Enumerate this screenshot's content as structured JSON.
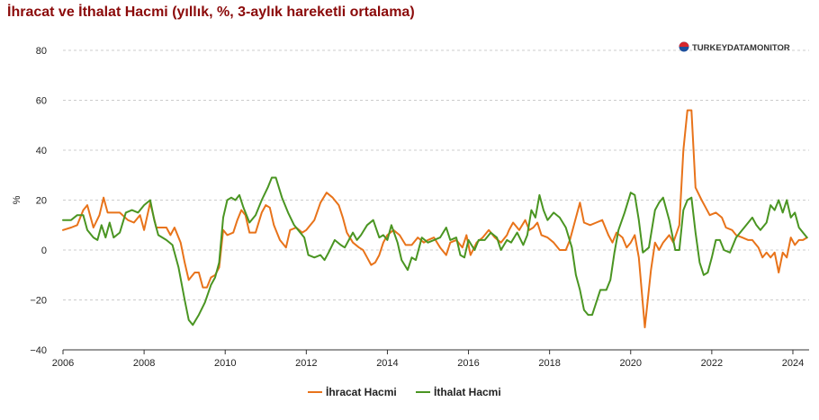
{
  "chart_data": {
    "type": "line",
    "title": "İhracat ve İthalat Hacmi (yıllık, %, 3-aylık hareketli ortalama)",
    "xlabel": "",
    "ylabel": "%",
    "xlim": [
      2006,
      2024.4
    ],
    "ylim": [
      -40,
      80
    ],
    "x_ticks": [
      "2006",
      "2008",
      "2010",
      "2012",
      "2014",
      "2016",
      "2018",
      "2020",
      "2022",
      "2024"
    ],
    "y_ticks": [
      "80",
      "60",
      "40",
      "20",
      "0",
      "−20",
      "−40"
    ],
    "grid": "horizontal-dashed",
    "legend_position": "bottom-center",
    "watermark": "TURKEYDATAMONITOR",
    "colors": {
      "title": "#8b0a0a",
      "grid": "#cccccc"
    },
    "series": [
      {
        "name": "İhracat Hacmi",
        "color": "#e8731a",
        "points": [
          [
            2006.0,
            8
          ],
          [
            2006.2,
            9
          ],
          [
            2006.35,
            10
          ],
          [
            2006.5,
            16
          ],
          [
            2006.6,
            18
          ],
          [
            2006.75,
            9
          ],
          [
            2006.9,
            14
          ],
          [
            2007.0,
            21
          ],
          [
            2007.1,
            15
          ],
          [
            2007.25,
            15
          ],
          [
            2007.4,
            15
          ],
          [
            2007.6,
            12
          ],
          [
            2007.75,
            11
          ],
          [
            2007.9,
            14
          ],
          [
            2008.0,
            8
          ],
          [
            2008.15,
            19
          ],
          [
            2008.3,
            9
          ],
          [
            2008.45,
            9
          ],
          [
            2008.55,
            9
          ],
          [
            2008.65,
            6
          ],
          [
            2008.75,
            9
          ],
          [
            2008.9,
            3
          ],
          [
            2009.0,
            -5
          ],
          [
            2009.1,
            -12
          ],
          [
            2009.25,
            -9
          ],
          [
            2009.35,
            -9
          ],
          [
            2009.45,
            -15
          ],
          [
            2009.55,
            -15
          ],
          [
            2009.65,
            -11
          ],
          [
            2009.75,
            -10
          ],
          [
            2009.85,
            -7
          ],
          [
            2009.95,
            8
          ],
          [
            2010.05,
            6
          ],
          [
            2010.2,
            7
          ],
          [
            2010.3,
            12
          ],
          [
            2010.4,
            16
          ],
          [
            2010.5,
            14
          ],
          [
            2010.6,
            7
          ],
          [
            2010.75,
            7
          ],
          [
            2010.9,
            15
          ],
          [
            2011.0,
            18
          ],
          [
            2011.1,
            17
          ],
          [
            2011.2,
            10
          ],
          [
            2011.35,
            4
          ],
          [
            2011.5,
            1
          ],
          [
            2011.6,
            8
          ],
          [
            2011.75,
            9
          ],
          [
            2011.9,
            7
          ],
          [
            2012.0,
            8
          ],
          [
            2012.2,
            12
          ],
          [
            2012.35,
            19
          ],
          [
            2012.5,
            23
          ],
          [
            2012.65,
            21
          ],
          [
            2012.8,
            18
          ],
          [
            2012.9,
            13
          ],
          [
            2013.0,
            7
          ],
          [
            2013.15,
            3
          ],
          [
            2013.3,
            1
          ],
          [
            2013.4,
            0
          ],
          [
            2013.5,
            -3
          ],
          [
            2013.6,
            -6
          ],
          [
            2013.7,
            -5
          ],
          [
            2013.8,
            -2
          ],
          [
            2013.9,
            3
          ],
          [
            2014.0,
            6
          ],
          [
            2014.15,
            8
          ],
          [
            2014.3,
            6
          ],
          [
            2014.45,
            2
          ],
          [
            2014.6,
            2
          ],
          [
            2014.75,
            5
          ],
          [
            2014.9,
            3
          ],
          [
            2015.0,
            4
          ],
          [
            2015.15,
            5
          ],
          [
            2015.3,
            1
          ],
          [
            2015.45,
            -2
          ],
          [
            2015.55,
            3
          ],
          [
            2015.7,
            4
          ],
          [
            2015.85,
            1
          ],
          [
            2015.95,
            6
          ],
          [
            2016.05,
            -2
          ],
          [
            2016.2,
            3
          ],
          [
            2016.35,
            5
          ],
          [
            2016.5,
            8
          ],
          [
            2016.65,
            5
          ],
          [
            2016.8,
            3
          ],
          [
            2016.95,
            6
          ],
          [
            2017.0,
            8
          ],
          [
            2017.1,
            11
          ],
          [
            2017.25,
            8
          ],
          [
            2017.4,
            12
          ],
          [
            2017.5,
            8
          ],
          [
            2017.6,
            9
          ],
          [
            2017.7,
            11
          ],
          [
            2017.8,
            6
          ],
          [
            2017.95,
            5
          ],
          [
            2018.1,
            3
          ],
          [
            2018.25,
            0
          ],
          [
            2018.4,
            0
          ],
          [
            2018.5,
            4
          ],
          [
            2018.6,
            10
          ],
          [
            2018.75,
            19
          ],
          [
            2018.85,
            11
          ],
          [
            2019.0,
            10
          ],
          [
            2019.15,
            11
          ],
          [
            2019.3,
            12
          ],
          [
            2019.45,
            6
          ],
          [
            2019.55,
            3
          ],
          [
            2019.65,
            7
          ],
          [
            2019.8,
            5
          ],
          [
            2019.9,
            1
          ],
          [
            2020.0,
            3
          ],
          [
            2020.1,
            6
          ],
          [
            2020.2,
            -3
          ],
          [
            2020.35,
            -31
          ],
          [
            2020.5,
            -8
          ],
          [
            2020.6,
            3
          ],
          [
            2020.7,
            0
          ],
          [
            2020.8,
            3
          ],
          [
            2020.95,
            6
          ],
          [
            2021.05,
            3
          ],
          [
            2021.2,
            10
          ],
          [
            2021.3,
            40
          ],
          [
            2021.4,
            56
          ],
          [
            2021.5,
            56
          ],
          [
            2021.6,
            25
          ],
          [
            2021.75,
            20
          ],
          [
            2021.85,
            17
          ],
          [
            2021.95,
            14
          ],
          [
            2022.1,
            15
          ],
          [
            2022.25,
            13
          ],
          [
            2022.35,
            9
          ],
          [
            2022.5,
            8
          ],
          [
            2022.6,
            6
          ],
          [
            2022.75,
            5
          ],
          [
            2022.9,
            4
          ],
          [
            2023.0,
            4
          ],
          [
            2023.15,
            1
          ],
          [
            2023.25,
            -3
          ],
          [
            2023.35,
            -1
          ],
          [
            2023.45,
            -3
          ],
          [
            2023.55,
            -1
          ],
          [
            2023.65,
            -9
          ],
          [
            2023.75,
            -1
          ],
          [
            2023.85,
            -3
          ],
          [
            2023.95,
            5
          ],
          [
            2024.05,
            2
          ],
          [
            2024.15,
            4
          ],
          [
            2024.25,
            4
          ],
          [
            2024.35,
            5
          ]
        ]
      },
      {
        "name": "İthalat Hacmi",
        "color": "#4a9522",
        "points": [
          [
            2006.0,
            12
          ],
          [
            2006.2,
            12
          ],
          [
            2006.35,
            14
          ],
          [
            2006.5,
            14
          ],
          [
            2006.6,
            8
          ],
          [
            2006.75,
            5
          ],
          [
            2006.85,
            4
          ],
          [
            2006.95,
            10
          ],
          [
            2007.05,
            5
          ],
          [
            2007.15,
            11
          ],
          [
            2007.25,
            5
          ],
          [
            2007.4,
            7
          ],
          [
            2007.55,
            15
          ],
          [
            2007.7,
            16
          ],
          [
            2007.85,
            15
          ],
          [
            2008.0,
            18
          ],
          [
            2008.15,
            20
          ],
          [
            2008.25,
            12
          ],
          [
            2008.35,
            6
          ],
          [
            2008.45,
            5
          ],
          [
            2008.55,
            4
          ],
          [
            2008.7,
            2
          ],
          [
            2008.85,
            -7
          ],
          [
            2009.0,
            -20
          ],
          [
            2009.1,
            -28
          ],
          [
            2009.2,
            -30
          ],
          [
            2009.35,
            -26
          ],
          [
            2009.5,
            -21
          ],
          [
            2009.65,
            -14
          ],
          [
            2009.75,
            -11
          ],
          [
            2009.85,
            -5
          ],
          [
            2009.95,
            13
          ],
          [
            2010.05,
            20
          ],
          [
            2010.15,
            21
          ],
          [
            2010.25,
            20
          ],
          [
            2010.35,
            22
          ],
          [
            2010.45,
            17
          ],
          [
            2010.6,
            11
          ],
          [
            2010.75,
            14
          ],
          [
            2010.9,
            20
          ],
          [
            2011.05,
            25
          ],
          [
            2011.15,
            29
          ],
          [
            2011.25,
            29
          ],
          [
            2011.4,
            21
          ],
          [
            2011.55,
            15
          ],
          [
            2011.7,
            10
          ],
          [
            2011.85,
            7
          ],
          [
            2011.95,
            5
          ],
          [
            2012.05,
            -2
          ],
          [
            2012.2,
            -3
          ],
          [
            2012.35,
            -2
          ],
          [
            2012.45,
            -4
          ],
          [
            2012.55,
            -1
          ],
          [
            2012.7,
            4
          ],
          [
            2012.85,
            2
          ],
          [
            2012.95,
            1
          ],
          [
            2013.05,
            4
          ],
          [
            2013.15,
            7
          ],
          [
            2013.25,
            4
          ],
          [
            2013.35,
            6
          ],
          [
            2013.5,
            10
          ],
          [
            2013.65,
            12
          ],
          [
            2013.8,
            5
          ],
          [
            2013.9,
            6
          ],
          [
            2014.0,
            4
          ],
          [
            2014.1,
            10
          ],
          [
            2014.25,
            3
          ],
          [
            2014.35,
            -4
          ],
          [
            2014.5,
            -8
          ],
          [
            2014.6,
            -3
          ],
          [
            2014.7,
            -4
          ],
          [
            2014.85,
            5
          ],
          [
            2015.0,
            3
          ],
          [
            2015.15,
            4
          ],
          [
            2015.3,
            5
          ],
          [
            2015.45,
            9
          ],
          [
            2015.55,
            4
          ],
          [
            2015.7,
            5
          ],
          [
            2015.8,
            -2
          ],
          [
            2015.9,
            -3
          ],
          [
            2016.0,
            4
          ],
          [
            2016.15,
            0
          ],
          [
            2016.25,
            4
          ],
          [
            2016.4,
            4
          ],
          [
            2016.55,
            7
          ],
          [
            2016.7,
            5
          ],
          [
            2016.8,
            0
          ],
          [
            2016.95,
            4
          ],
          [
            2017.05,
            3
          ],
          [
            2017.2,
            7
          ],
          [
            2017.35,
            2
          ],
          [
            2017.45,
            6
          ],
          [
            2017.55,
            16
          ],
          [
            2017.65,
            13
          ],
          [
            2017.75,
            22
          ],
          [
            2017.85,
            16
          ],
          [
            2017.95,
            12
          ],
          [
            2018.1,
            15
          ],
          [
            2018.25,
            13
          ],
          [
            2018.4,
            9
          ],
          [
            2018.55,
            1
          ],
          [
            2018.65,
            -10
          ],
          [
            2018.75,
            -16
          ],
          [
            2018.85,
            -24
          ],
          [
            2018.95,
            -26
          ],
          [
            2019.05,
            -26
          ],
          [
            2019.15,
            -21
          ],
          [
            2019.25,
            -16
          ],
          [
            2019.4,
            -16
          ],
          [
            2019.5,
            -12
          ],
          [
            2019.6,
            -1
          ],
          [
            2019.7,
            8
          ],
          [
            2019.85,
            15
          ],
          [
            2020.0,
            23
          ],
          [
            2020.1,
            22
          ],
          [
            2020.2,
            12
          ],
          [
            2020.3,
            -1
          ],
          [
            2020.45,
            1
          ],
          [
            2020.6,
            16
          ],
          [
            2020.7,
            19
          ],
          [
            2020.8,
            21
          ],
          [
            2020.95,
            12
          ],
          [
            2021.1,
            0
          ],
          [
            2021.2,
            0
          ],
          [
            2021.3,
            16
          ],
          [
            2021.4,
            20
          ],
          [
            2021.5,
            21
          ],
          [
            2021.6,
            7
          ],
          [
            2021.7,
            -5
          ],
          [
            2021.8,
            -10
          ],
          [
            2021.9,
            -9
          ],
          [
            2022.0,
            -3
          ],
          [
            2022.1,
            4
          ],
          [
            2022.2,
            4
          ],
          [
            2022.3,
            0
          ],
          [
            2022.45,
            -1
          ],
          [
            2022.6,
            5
          ],
          [
            2022.75,
            8
          ],
          [
            2022.9,
            11
          ],
          [
            2023.0,
            13
          ],
          [
            2023.1,
            10
          ],
          [
            2023.2,
            8
          ],
          [
            2023.35,
            11
          ],
          [
            2023.45,
            18
          ],
          [
            2023.55,
            16
          ],
          [
            2023.65,
            20
          ],
          [
            2023.75,
            15
          ],
          [
            2023.85,
            20
          ],
          [
            2023.95,
            13
          ],
          [
            2024.05,
            15
          ],
          [
            2024.15,
            9
          ],
          [
            2024.25,
            7
          ],
          [
            2024.35,
            5
          ]
        ]
      }
    ]
  }
}
